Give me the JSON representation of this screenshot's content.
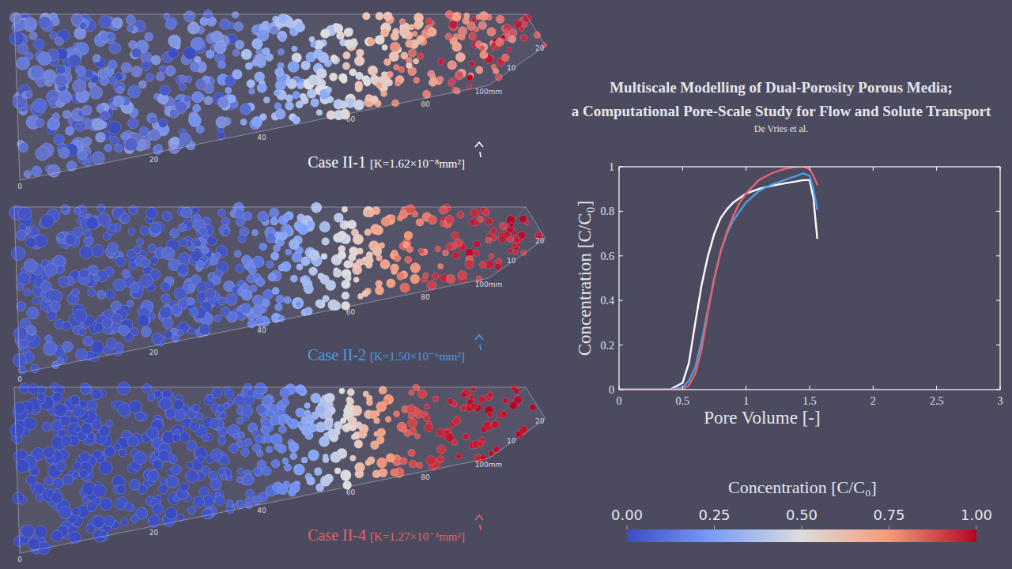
{
  "title": "Multiscale Modelling of Dual-Porosity Porous Media;",
  "subtitle": "a Computational Pore-Scale Study for Flow and Solute Transport",
  "authors": "De Vries et al.",
  "panels": [
    {
      "case": "Case II-1",
      "permeability": "[K=1.62×10⁻⁸mm²]"
    },
    {
      "case": "Case II-2",
      "permeability": "[K=1.50×10⁻⁶mm²]"
    },
    {
      "case": "Case II-4",
      "permeability": "[K=1.27×10⁻⁴mm²]"
    }
  ],
  "panel_axes": {
    "length_lim": [
      0,
      100
    ],
    "length_ticks": [
      0,
      20,
      40,
      60,
      80,
      {
        "value": 100,
        "label": "100mm"
      }
    ],
    "depth_lim": [
      0,
      20
    ],
    "depth_ticks": [
      10,
      20
    ]
  },
  "colorbar": {
    "title": "Concentration [C/C₀]",
    "range": [
      0,
      1
    ],
    "ticks": [
      {
        "value": 0,
        "label": "0.00"
      },
      {
        "value": 0.25,
        "label": "0.25"
      },
      {
        "value": 0.5,
        "label": "0.50"
      },
      {
        "value": 0.75,
        "label": "0.75"
      },
      {
        "value": 1,
        "label": "1.00"
      }
    ]
  },
  "chart_data": {
    "type": "line",
    "x_label": "Pore Volume [-]",
    "y_label": "Concentration [C/C₀]",
    "x": [
      0,
      0.4,
      0.5,
      0.55,
      0.6,
      0.65,
      0.7,
      0.75,
      0.8,
      0.85,
      0.9,
      0.95,
      1.0,
      1.1,
      1.2,
      1.3,
      1.4,
      1.45,
      1.5,
      1.53,
      1.56
    ],
    "series": [
      {
        "color": "#ffffff",
        "values": [
          0,
          0,
          0.03,
          0.12,
          0.3,
          0.47,
          0.6,
          0.7,
          0.77,
          0.81,
          0.84,
          0.86,
          0.88,
          0.9,
          0.915,
          0.925,
          0.935,
          0.94,
          0.94,
          0.86,
          0.68
        ]
      },
      {
        "color": "#4d9be6",
        "values": [
          0,
          0,
          0.01,
          0.04,
          0.1,
          0.22,
          0.36,
          0.5,
          0.62,
          0.7,
          0.76,
          0.8,
          0.84,
          0.89,
          0.92,
          0.94,
          0.96,
          0.97,
          0.96,
          0.9,
          0.81
        ]
      },
      {
        "color": "#e8626b",
        "values": [
          0,
          0,
          0,
          0.02,
          0.07,
          0.18,
          0.35,
          0.5,
          0.62,
          0.71,
          0.78,
          0.84,
          0.88,
          0.94,
          0.97,
          0.99,
          1.0,
          1.0,
          0.99,
          0.96,
          0.92
        ]
      }
    ],
    "xlim": [
      0,
      3
    ],
    "ylim": [
      0,
      1
    ],
    "xticks": [
      0,
      0.5,
      1,
      1.5,
      2,
      2.5,
      3
    ],
    "yticks": [
      0,
      0.2,
      0.4,
      0.6,
      0.8,
      1
    ],
    "grid": false
  }
}
